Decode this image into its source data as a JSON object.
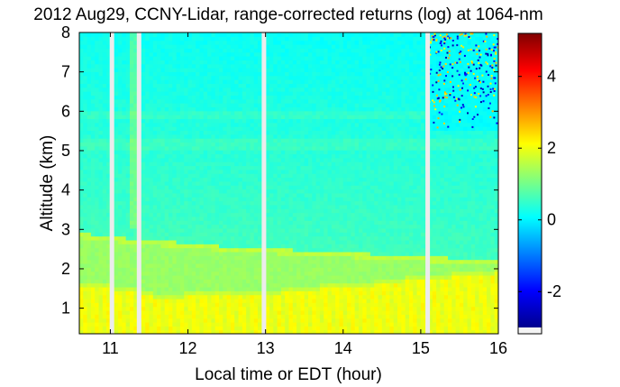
{
  "chart_data": {
    "type": "heatmap",
    "title": "2012 Aug29, CCNY-Lidar, range-corrected returns (log) at 1064-nm",
    "xlabel": "Local time or EDT (hour)",
    "ylabel": "Altitude (km)",
    "xlim": [
      10.6,
      16.0
    ],
    "ylim": [
      0.35,
      8.0
    ],
    "xticks": [
      "11",
      "12",
      "13",
      "14",
      "15",
      "16"
    ],
    "yticks": [
      "1",
      "2",
      "3",
      "4",
      "5",
      "6",
      "7",
      "8"
    ],
    "colorbar": {
      "colormap": "jet",
      "clim": [
        -3.0,
        5.2
      ],
      "ticks": [
        "-2",
        "0",
        "2",
        "4"
      ]
    },
    "data_gaps_hours": [
      11.02,
      11.37,
      12.98,
      15.09
    ],
    "boundary_layer_top_km": [
      [
        10.6,
        1.55
      ],
      [
        11.0,
        1.5
      ],
      [
        11.4,
        1.4
      ],
      [
        11.6,
        1.25
      ],
      [
        12.0,
        1.3
      ],
      [
        12.5,
        1.35
      ],
      [
        13.0,
        1.35
      ],
      [
        13.5,
        1.45
      ],
      [
        14.0,
        1.55
      ],
      [
        14.5,
        1.6
      ],
      [
        15.0,
        1.75
      ],
      [
        15.5,
        1.8
      ],
      [
        16.0,
        1.9
      ]
    ],
    "residual_layer_top_km": [
      [
        10.6,
        2.8
      ],
      [
        11.0,
        2.7
      ],
      [
        11.5,
        2.6
      ],
      [
        12.0,
        2.55
      ],
      [
        12.5,
        2.45
      ],
      [
        13.0,
        2.4
      ],
      [
        13.5,
        2.35
      ],
      [
        14.0,
        2.3
      ],
      [
        14.5,
        2.25
      ],
      [
        15.0,
        2.2
      ],
      [
        16.0,
        2.1
      ]
    ],
    "signal_levels": {
      "boundary_layer": 2.0,
      "residual_layer": 1.3,
      "free_troposphere": 0.6,
      "upper_noise": 0.1
    }
  }
}
